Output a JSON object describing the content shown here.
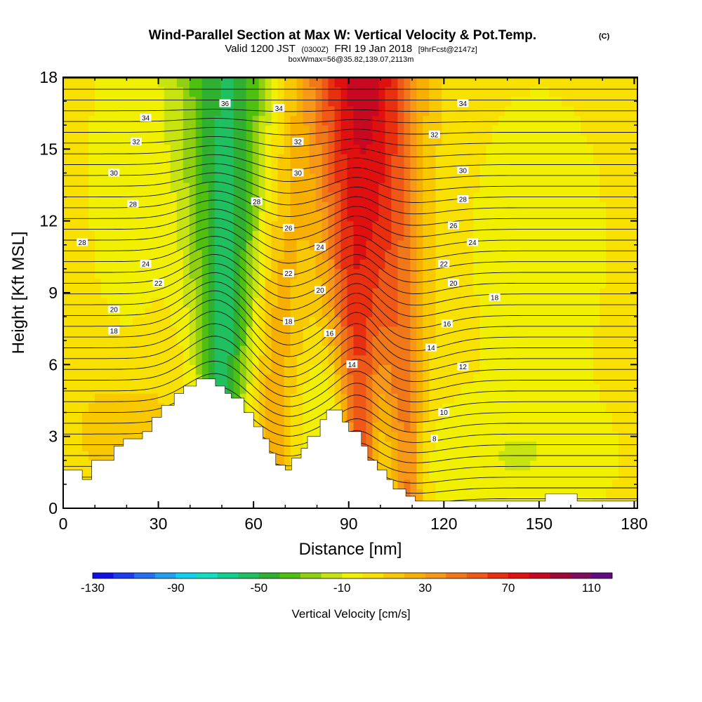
{
  "title": {
    "main": "Wind-Parallel Section at Max W: Vertical Velocity & Pot.Temp.",
    "copyright": "(C)",
    "valid_prefix": "Valid 1200 JST",
    "valid_utc": "(0300Z)",
    "valid_date": "FRI 19 Jan 2018",
    "forecast": "[9hrFcst@2147z]",
    "box_info": "boxWmax=56@35.82,139.07,2113m"
  },
  "chart_data": {
    "type": "heatmap",
    "xlabel": "Distance [nm]",
    "ylabel": "Height [Kft MSL]",
    "xlim": [
      0,
      181
    ],
    "ylim": [
      0,
      18
    ],
    "x_ticks": [
      "0",
      "30",
      "60",
      "90",
      "120",
      "150",
      "180"
    ],
    "y_ticks": [
      "0",
      "3",
      "6",
      "9",
      "12",
      "15",
      "18"
    ],
    "colorbar": {
      "title": "Vertical Velocity [cm/s]",
      "labels": [
        "-130",
        "-90",
        "-50",
        "-10",
        "30",
        "70",
        "110"
      ],
      "colors": [
        "#1010e6",
        "#1c3cf0",
        "#2470f0",
        "#20a0f0",
        "#10d0f0",
        "#10e0c0",
        "#10d090",
        "#20c060",
        "#30b030",
        "#50c010",
        "#90d010",
        "#c8e410",
        "#f0f000",
        "#f8e000",
        "#f8c800",
        "#f8b000",
        "#f89818",
        "#f07818",
        "#f05818",
        "#e83010",
        "#e01010",
        "#c80820",
        "#a00838",
        "#800c60",
        "#600c80"
      ]
    },
    "terrain_profile": [
      [
        0,
        1.6
      ],
      [
        6,
        1.6
      ],
      [
        6,
        1.2
      ],
      [
        9,
        1.2
      ],
      [
        9,
        2.0
      ],
      [
        16,
        2.0
      ],
      [
        16,
        2.6
      ],
      [
        19,
        2.6
      ],
      [
        19,
        2.9
      ],
      [
        25,
        2.9
      ],
      [
        25,
        3.2
      ],
      [
        28,
        3.2
      ],
      [
        28,
        3.8
      ],
      [
        31,
        3.8
      ],
      [
        31,
        4.3
      ],
      [
        35,
        4.3
      ],
      [
        35,
        4.8
      ],
      [
        38,
        4.8
      ],
      [
        38,
        5.1
      ],
      [
        42,
        5.1
      ],
      [
        42,
        5.4
      ],
      [
        48,
        5.4
      ],
      [
        48,
        5.1
      ],
      [
        51,
        5.1
      ],
      [
        51,
        4.8
      ],
      [
        53,
        4.8
      ],
      [
        53,
        4.6
      ],
      [
        57,
        4.6
      ],
      [
        57,
        4.0
      ],
      [
        60,
        4.0
      ],
      [
        60,
        3.4
      ],
      [
        63,
        3.4
      ],
      [
        63,
        2.9
      ],
      [
        65,
        2.9
      ],
      [
        65,
        2.3
      ],
      [
        67,
        2.3
      ],
      [
        67,
        1.8
      ],
      [
        70,
        1.8
      ],
      [
        70,
        1.6
      ],
      [
        72,
        1.6
      ],
      [
        72,
        2.1
      ],
      [
        75,
        2.1
      ],
      [
        75,
        2.5
      ],
      [
        77,
        2.5
      ],
      [
        77,
        3.0
      ],
      [
        81,
        3.0
      ],
      [
        81,
        3.7
      ],
      [
        83,
        3.7
      ],
      [
        83,
        4.1
      ],
      [
        88,
        4.1
      ],
      [
        88,
        3.6
      ],
      [
        90,
        3.6
      ],
      [
        90,
        3.2
      ],
      [
        94,
        3.2
      ],
      [
        94,
        2.6
      ],
      [
        96,
        2.6
      ],
      [
        96,
        2.0
      ],
      [
        99,
        2.0
      ],
      [
        99,
        1.6
      ],
      [
        102,
        1.6
      ],
      [
        102,
        1.2
      ],
      [
        104,
        1.2
      ],
      [
        104,
        0.8
      ],
      [
        108,
        0.8
      ],
      [
        108,
        0.5
      ],
      [
        111,
        0.5
      ],
      [
        111,
        0.3
      ],
      [
        152,
        0.3
      ],
      [
        152,
        0.6
      ],
      [
        162,
        0.6
      ],
      [
        162,
        0.3
      ],
      [
        181,
        0.3
      ],
      [
        181,
        0
      ],
      [
        0,
        0
      ]
    ],
    "updraft_bands": [
      {
        "x0": 49,
        "x1": 53,
        "tilt": 0.5,
        "value": -60
      },
      {
        "x0": 66,
        "x1": 70,
        "tilt": 0.3,
        "value": 20
      },
      {
        "x0": 94,
        "x1": 90,
        "tilt": 0.35,
        "value": 60
      },
      {
        "x0": 109,
        "x1": 102,
        "tilt": 0.3,
        "value": 40
      }
    ],
    "isentrope_labels": [
      {
        "text": "36",
        "x": 51,
        "y": 16.9
      },
      {
        "text": "34",
        "x": 26,
        "y": 16.3
      },
      {
        "text": "34",
        "x": 68,
        "y": 16.7
      },
      {
        "text": "34",
        "x": 126,
        "y": 16.9
      },
      {
        "text": "32",
        "x": 23,
        "y": 15.3
      },
      {
        "text": "32",
        "x": 74,
        "y": 15.3
      },
      {
        "text": "32",
        "x": 117,
        "y": 15.6
      },
      {
        "text": "30",
        "x": 16,
        "y": 14.0
      },
      {
        "text": "30",
        "x": 74,
        "y": 14.0
      },
      {
        "text": "30",
        "x": 126,
        "y": 14.1
      },
      {
        "text": "28",
        "x": 22,
        "y": 12.7
      },
      {
        "text": "28",
        "x": 61,
        "y": 12.8
      },
      {
        "text": "28",
        "x": 126,
        "y": 12.9
      },
      {
        "text": "28",
        "x": 6,
        "y": 11.1
      },
      {
        "text": "26",
        "x": 71,
        "y": 11.7
      },
      {
        "text": "26",
        "x": 123,
        "y": 11.8
      },
      {
        "text": "24",
        "x": 81,
        "y": 10.9
      },
      {
        "text": "24",
        "x": 129,
        "y": 11.1
      },
      {
        "text": "24",
        "x": 26,
        "y": 10.2
      },
      {
        "text": "22",
        "x": 71,
        "y": 9.8
      },
      {
        "text": "22",
        "x": 120,
        "y": 10.2
      },
      {
        "text": "22",
        "x": 30,
        "y": 9.4
      },
      {
        "text": "20",
        "x": 81,
        "y": 9.1
      },
      {
        "text": "20",
        "x": 123,
        "y": 9.4
      },
      {
        "text": "20",
        "x": 16,
        "y": 8.3
      },
      {
        "text": "18",
        "x": 71,
        "y": 7.8
      },
      {
        "text": "18",
        "x": 136,
        "y": 8.8
      },
      {
        "text": "18",
        "x": 16,
        "y": 7.4
      },
      {
        "text": "16",
        "x": 84,
        "y": 7.3
      },
      {
        "text": "16",
        "x": 121,
        "y": 7.7
      },
      {
        "text": "14",
        "x": 91,
        "y": 6.0
      },
      {
        "text": "14",
        "x": 116,
        "y": 6.7
      },
      {
        "text": "12",
        "x": 126,
        "y": 5.9
      },
      {
        "text": "10",
        "x": 120,
        "y": 4.0
      },
      {
        "text": "8",
        "x": 117,
        "y": 2.9
      }
    ]
  }
}
